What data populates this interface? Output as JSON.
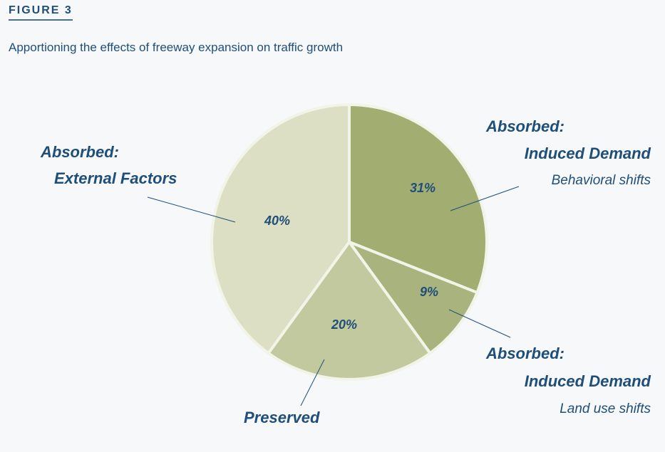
{
  "header": {
    "figure_label": "FIGURE 3",
    "title": "Apportioning the effects of freeway expansion on traffic growth"
  },
  "chart_data": {
    "type": "pie",
    "title": "Apportioning the effects of freeway expansion on traffic growth",
    "slices": [
      {
        "label_line1": "Absorbed:",
        "label_line2": "Induced Demand",
        "sublabel": "Behavioral shifts",
        "value": 31,
        "value_label": "31%",
        "color": "#a2ad72"
      },
      {
        "label_line1": "Absorbed:",
        "label_line2": "Induced Demand",
        "sublabel": "Land use shifts",
        "value": 9,
        "value_label": "9%",
        "color": "#a8b37d"
      },
      {
        "label_line1": "Preserved",
        "label_line2": "",
        "sublabel": "",
        "value": 20,
        "value_label": "20%",
        "color": "#c3c99f"
      },
      {
        "label_line1": "Absorbed:",
        "label_line2": "External Factors",
        "sublabel": "",
        "value": 40,
        "value_label": "40%",
        "color": "#dcdfc3"
      }
    ],
    "separator_color": "#f2f4e8",
    "text_color": "#1f4e79"
  }
}
